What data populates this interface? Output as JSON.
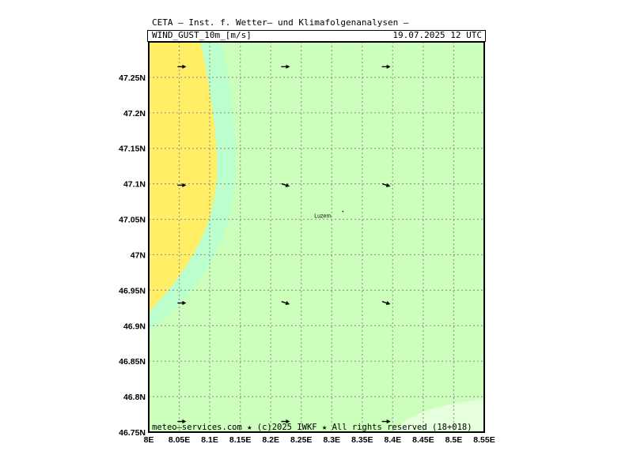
{
  "header": {
    "title": "CETA – Inst. f. Wetter– und Klimafolgenanalysen –",
    "variable": "WIND_GUST_10m_[m/s]",
    "valid_time": "19.07.2025 12 UTC"
  },
  "map": {
    "lon_range": [
      8.0,
      8.55
    ],
    "lat_range": [
      46.75,
      47.3
    ],
    "lon_ticks": [
      8.0,
      8.05,
      8.1,
      8.15,
      8.2,
      8.25,
      8.3,
      8.35,
      8.4,
      8.45,
      8.5,
      8.55
    ],
    "lon_tick_labels": [
      "8E",
      "8.05E",
      "8.1E",
      "8.15E",
      "8.2E",
      "8.25E",
      "8.3E",
      "8.35E",
      "8.4E",
      "8.45E",
      "8.5E",
      "8.55E"
    ],
    "lat_ticks": [
      46.75,
      46.8,
      46.85,
      46.9,
      46.95,
      47.0,
      47.05,
      47.1,
      47.15,
      47.2,
      47.25
    ],
    "lat_tick_labels": [
      "46.75N",
      "46.8N",
      "46.85N",
      "46.9N",
      "46.95N",
      "47N",
      "47.05N",
      "47.1N",
      "47.15N",
      "47.2N",
      "47.25N"
    ],
    "gridlines": true,
    "city": {
      "name": "Luzern",
      "lon": 8.3,
      "lat": 47.05
    },
    "colors": {
      "background_field": "#ccffbb",
      "high_gust_region": "#ffee66",
      "transition_band": "#bbffcc",
      "low_gust_region": "#e6ffdd",
      "grid": "#999999"
    },
    "wind_arrows": [
      {
        "lon": 8.055,
        "lat": 47.265,
        "dir": "E"
      },
      {
        "lon": 8.225,
        "lat": 47.265,
        "dir": "E"
      },
      {
        "lon": 8.39,
        "lat": 47.265,
        "dir": "E"
      },
      {
        "lon": 8.055,
        "lat": 47.098,
        "dir": "E"
      },
      {
        "lon": 8.225,
        "lat": 47.098,
        "dir": "ESE"
      },
      {
        "lon": 8.39,
        "lat": 47.098,
        "dir": "ESE"
      },
      {
        "lon": 8.055,
        "lat": 46.932,
        "dir": "E"
      },
      {
        "lon": 8.225,
        "lat": 46.932,
        "dir": "ESE"
      },
      {
        "lon": 8.39,
        "lat": 46.932,
        "dir": "ESE"
      },
      {
        "lon": 8.055,
        "lat": 46.765,
        "dir": "E"
      },
      {
        "lon": 8.225,
        "lat": 46.765,
        "dir": "E"
      },
      {
        "lon": 8.39,
        "lat": 46.765,
        "dir": "E"
      }
    ]
  },
  "footer": {
    "credit": "meteo–services.com ★ (c)2025 IWKF ★ All rights reserved (18+018)"
  }
}
